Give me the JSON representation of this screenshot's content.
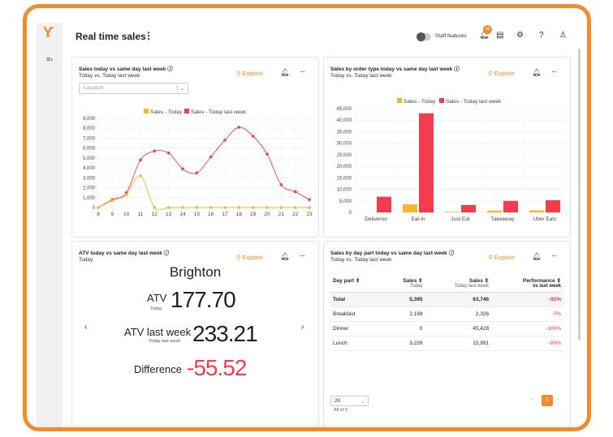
{
  "app": {
    "title": "Real time sales",
    "staff_features": "Staff features",
    "notif_count": "10"
  },
  "card1": {
    "title": "Sales today vs same day last week",
    "subtitle": "Today vs. Today last week",
    "explore": "Explore",
    "location_placeholder": "Location"
  },
  "card2": {
    "title": "Sales by order type today vs same day last week",
    "subtitle": "Today vs. Today last week",
    "explore": "Explore"
  },
  "card3": {
    "title": "ATV today vs same day last week",
    "subtitle": "Today",
    "explore": "Explore",
    "city": "Brighton",
    "atv_label": "ATV",
    "atv_sub": "Today",
    "atv_value": "177.70",
    "lw_label": "ATV last week",
    "lw_sub": "Today last week",
    "lw_value": "233.21",
    "diff_label": "Difference",
    "diff_value": "-55.52"
  },
  "card4": {
    "title": "Sales by day part today vs same day last week",
    "subtitle": "Today vs. Today last week",
    "explore": "Explore",
    "headers": {
      "daypart": "Day part",
      "sales": "Sales",
      "sales_sub": "Today",
      "sales_lw": "Sales",
      "sales_lw_sub": "Today last week",
      "perf": "Performance",
      "perf_sub": "vs last week"
    },
    "rows": [
      {
        "name": "Total",
        "sales": "5,395",
        "lw": "63,746",
        "perf": "-92%"
      },
      {
        "name": "Breakfast",
        "sales": "2,169",
        "lw": "2,326",
        "perf": "-7%"
      },
      {
        "name": "Dinner",
        "sales": "0",
        "lw": "45,428",
        "perf": "-100%"
      },
      {
        "name": "Lunch",
        "sales": "3,226",
        "lw": "15,991",
        "perf": "-80%"
      }
    ],
    "page_size": "20",
    "page_info": "All of 3",
    "page": "1"
  },
  "colors": {
    "today": "#f7b733",
    "last_week": "#f23d4f",
    "accent": "#f28a2e"
  },
  "chart_data": [
    {
      "type": "line",
      "legend": [
        "Sales - Today",
        "Sales - Today last week"
      ],
      "x": [
        8,
        9,
        10,
        11,
        12,
        13,
        14,
        15,
        16,
        17,
        18,
        19,
        20,
        21,
        22,
        23
      ],
      "ylim": [
        0,
        9000
      ],
      "yticks": [
        0,
        1000,
        2000,
        3000,
        4000,
        5000,
        6000,
        7000,
        8000,
        9000
      ],
      "series": [
        {
          "name": "Sales - Today",
          "values": [
            0,
            700,
            1300,
            3200,
            0,
            0,
            0,
            0,
            0,
            0,
            0,
            0,
            0,
            0,
            0,
            0
          ]
        },
        {
          "name": "Sales - Today last week",
          "values": [
            0,
            800,
            1500,
            4800,
            5700,
            5500,
            3900,
            3500,
            5100,
            6800,
            8100,
            7200,
            5400,
            2300,
            1600,
            800
          ]
        }
      ]
    },
    {
      "type": "bar",
      "legend": [
        "Sales - Today",
        "Sales - Today last week"
      ],
      "categories": [
        "Deliveroo",
        "Eat-In",
        "Just Eat",
        "Takeaway",
        "Uber Eats"
      ],
      "ylim": [
        0,
        45000
      ],
      "yticks": [
        0,
        5000,
        10000,
        15000,
        20000,
        25000,
        30000,
        35000,
        40000,
        45000
      ],
      "series": [
        {
          "name": "Sales - Today",
          "values": [
            0,
            3500,
            300,
            800,
            900
          ]
        },
        {
          "name": "Sales - Today last week",
          "values": [
            6800,
            43000,
            3200,
            5000,
            5300
          ]
        }
      ]
    }
  ]
}
